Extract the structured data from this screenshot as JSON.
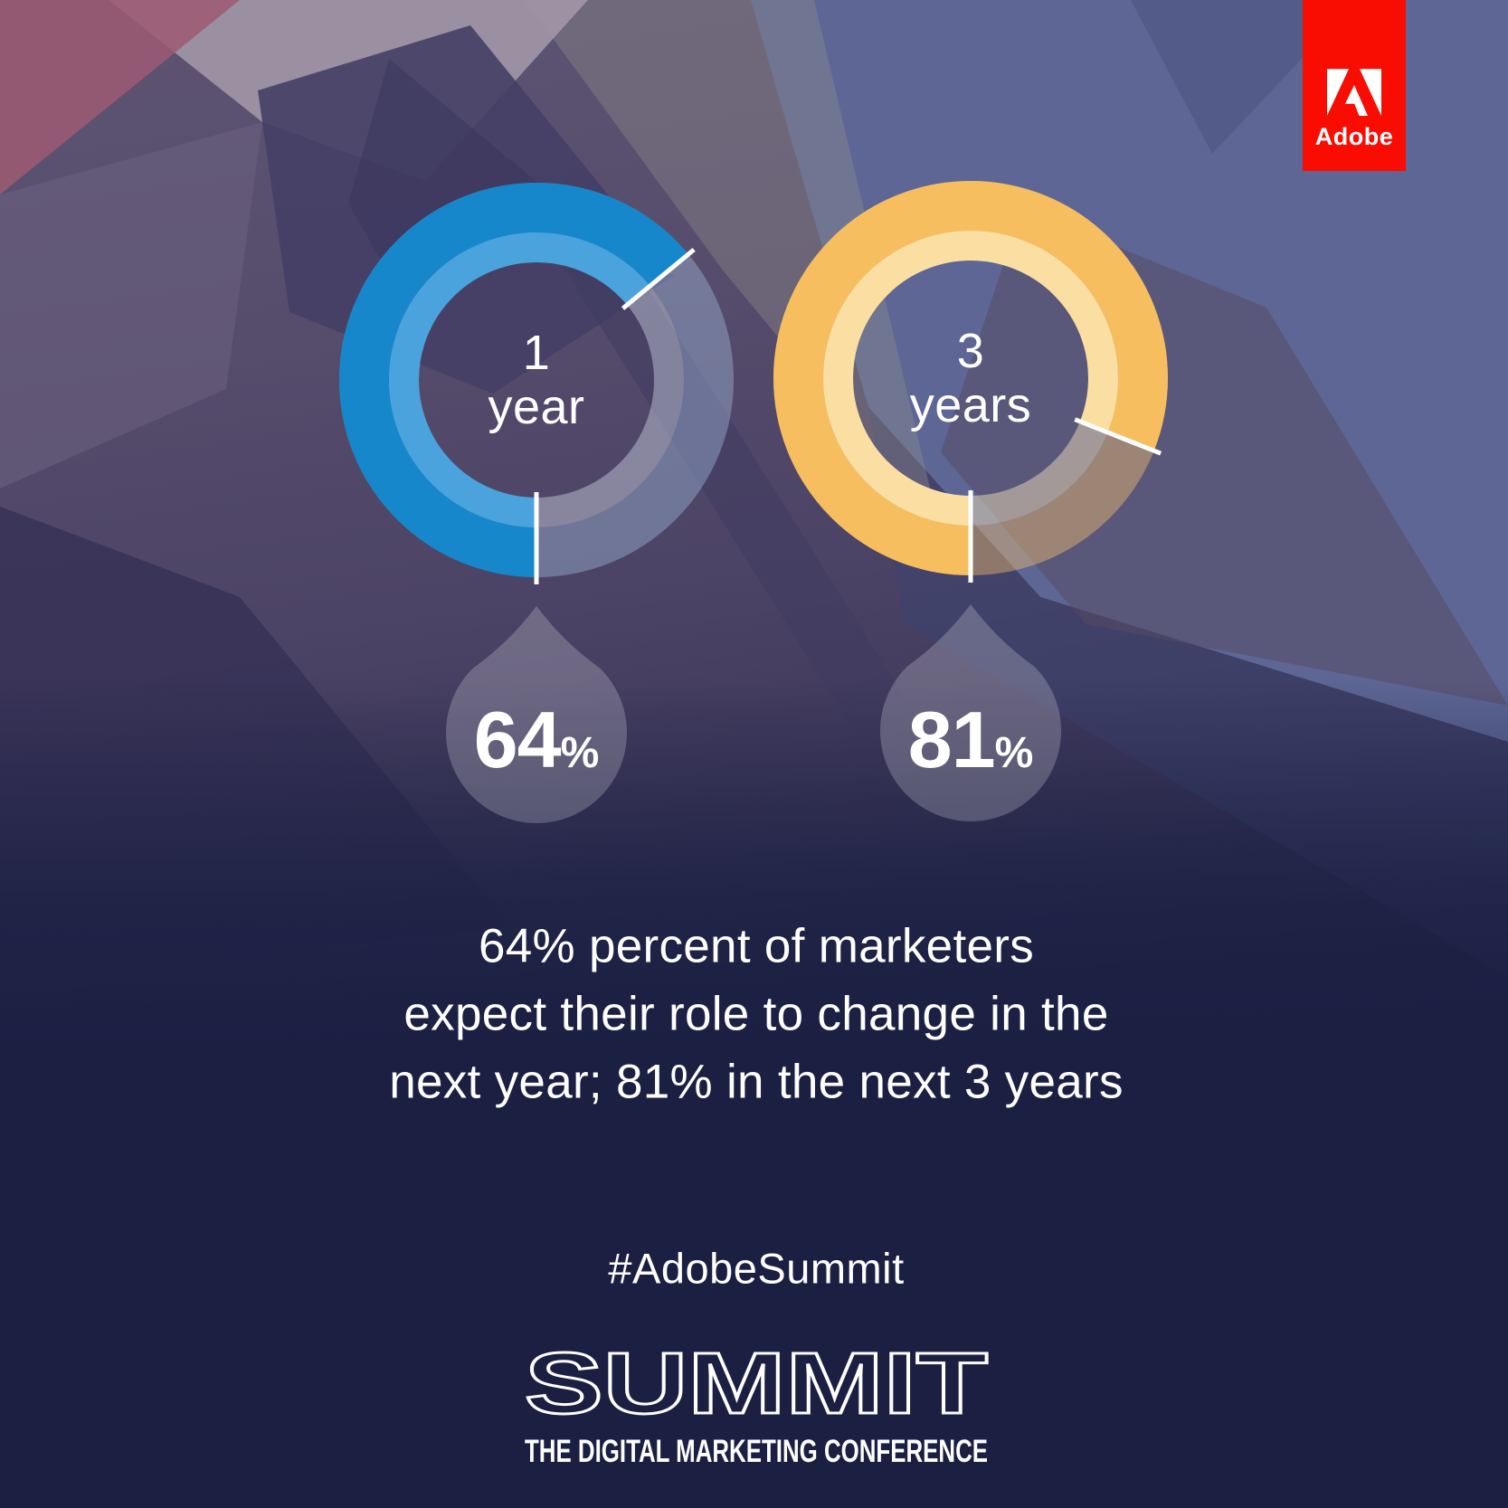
{
  "brand": {
    "name": "Adobe",
    "tab_color": "#F90C02"
  },
  "charts": [
    {
      "id": "1-year",
      "center_label": {
        "line1": "1",
        "line2": "year"
      },
      "value_pct": 64,
      "value_text": "64",
      "percent_sign": "%",
      "ring": {
        "outer": "#1787CB",
        "inner": "#4AA3DC",
        "remainder_outer": "rgba(160,185,220,0.42)",
        "remainder_inner": "rgba(230,240,250,0.38)"
      }
    },
    {
      "id": "3-years",
      "center_label": {
        "line1": "3",
        "line2": "years"
      },
      "value_pct": 81,
      "value_text": "81",
      "percent_sign": "%",
      "ring": {
        "outer": "#F7BE60",
        "inner": "#FBDEA2",
        "remainder_outer": "rgba(247,195,110,0.42)",
        "remainder_inner": "rgba(252,232,190,0.45)"
      }
    }
  ],
  "chart_data": {
    "type": "pie",
    "variant": "donut",
    "start_position": "bottom",
    "direction": "clockwise",
    "series": [
      {
        "label": "1 year",
        "value": 64,
        "unit": "%",
        "color": "#1787CB"
      },
      {
        "label": "3 years",
        "value": 81,
        "unit": "%",
        "color": "#F7BE60"
      }
    ],
    "annotation": "64% percent of marketers expect their role to change in the next year; 81% in the next 3 years"
  },
  "body": {
    "lines": [
      "64% percent of marketers",
      "expect their role to change in the",
      "next year; 81% in the next 3 years"
    ]
  },
  "footer": {
    "hashtag": "#AdobeSummit",
    "summit": "SUMMIT",
    "tagline": "THE DIGITAL MARKETING CONFERENCE"
  }
}
